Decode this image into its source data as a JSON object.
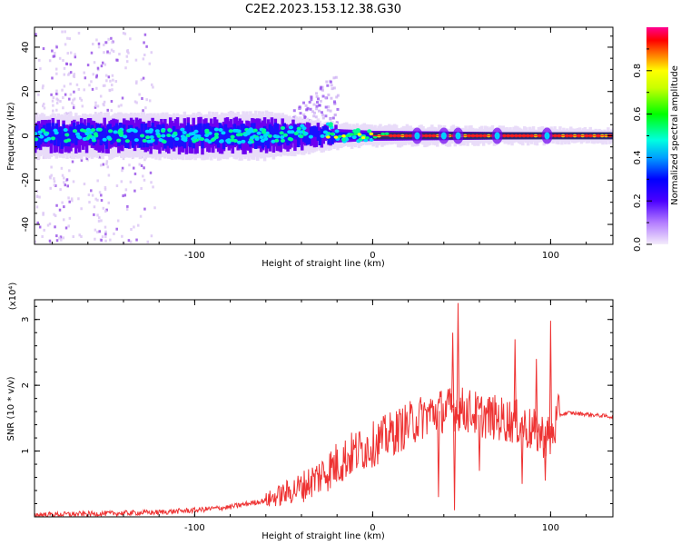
{
  "figure": {
    "title": "C2E2.2023.153.12.38.G30"
  },
  "chart_data": [
    {
      "type": "heatmap",
      "xlabel": "Height of straight line (km)",
      "ylabel": "Frequency (Hz)",
      "xlim": [
        -190,
        135
      ],
      "ylim": [
        -49,
        49
      ],
      "xticks": [
        -100,
        0,
        100
      ],
      "yticks": [
        -40,
        -20,
        0,
        20,
        40
      ],
      "colorbar": {
        "label": "Normalized spectral amplitude",
        "range": [
          0.0,
          1.0
        ],
        "ticks": [
          0.0,
          0.2,
          0.4,
          0.6,
          0.8
        ],
        "colormap": [
          "#e6d7f5",
          "#7a00ff",
          "#0000ff",
          "#00e5ff",
          "#00ff00",
          "#ffff00",
          "#ff0000",
          "#ff007f"
        ]
      },
      "band_center_hz": 0,
      "band_halfwidth_hz": [
        {
          "x": -190,
          "halfwidth": 8
        },
        {
          "x": -60,
          "halfwidth": 9
        },
        {
          "x": -20,
          "halfwidth": 4
        },
        {
          "x": 0,
          "halfwidth": 3
        },
        {
          "x": 135,
          "halfwidth": 1.5
        }
      ],
      "plume": {
        "x_range": [
          -55,
          -20
        ],
        "freq_range": [
          0,
          25
        ]
      },
      "scatter_column_x": [
        -185,
        -165,
        -140
      ]
    },
    {
      "type": "line",
      "xlabel": "Height of straight line (km)",
      "ylabel": "SNR (10 * v/v)",
      "y_multiplier": "(x10⁴)",
      "xlim": [
        -190,
        135
      ],
      "ylim": [
        0,
        3.3
      ],
      "xticks": [
        -100,
        0,
        100
      ],
      "yticks": [
        1,
        2,
        3
      ],
      "color": "#ee3333",
      "series": [
        {
          "x": [
            -190,
            -150,
            -120,
            -100,
            -80,
            -60,
            -40,
            -30,
            -20,
            -10,
            0,
            10,
            20,
            30,
            35,
            40,
            48,
            55,
            60,
            70,
            80,
            90,
            100,
            105,
            110,
            120,
            135
          ],
          "y": [
            0.03,
            0.05,
            0.07,
            0.1,
            0.15,
            0.25,
            0.45,
            0.62,
            0.8,
            0.98,
            1.1,
            1.25,
            1.4,
            1.55,
            1.6,
            1.62,
            1.65,
            1.6,
            1.55,
            1.5,
            1.45,
            1.3,
            1.2,
            1.55,
            1.58,
            1.56,
            1.52
          ]
        }
      ],
      "spikes": [
        {
          "x": 48,
          "y": 3.25
        },
        {
          "x": 46,
          "y": 0.1
        },
        {
          "x": 100,
          "y": 2.98
        },
        {
          "x": 97,
          "y": 0.55
        },
        {
          "x": 37,
          "y": 0.3
        },
        {
          "x": 45,
          "y": 2.8
        },
        {
          "x": 60,
          "y": 0.7
        },
        {
          "x": 80,
          "y": 2.7
        },
        {
          "x": 84,
          "y": 0.5
        },
        {
          "x": 92,
          "y": 2.4
        }
      ]
    }
  ]
}
